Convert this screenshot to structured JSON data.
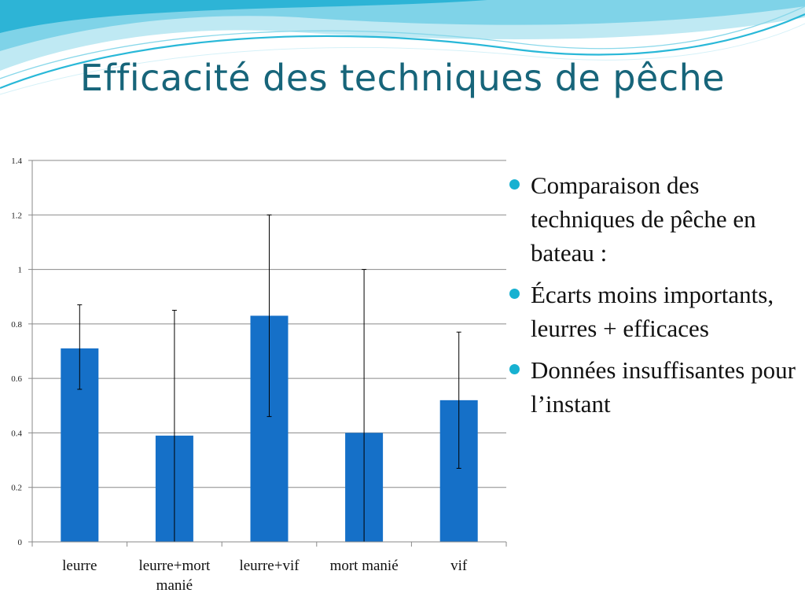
{
  "slide": {
    "title": "Efficacité des techniques de pêche",
    "bullets": [
      "Comparaison des techniques de pêche en bateau :",
      "Écarts moins importants, leurres + efficaces",
      "Données insuffisantes pour l’instant"
    ],
    "colors": {
      "title": "#17657a",
      "bullet": "#17b1d1",
      "bar": "#1570c8",
      "wave": "#29b8d8"
    }
  },
  "chart_data": {
    "type": "bar",
    "categories": [
      [
        "leurre"
      ],
      [
        "leurre+mort",
        "manié"
      ],
      [
        "leurre+vif"
      ],
      [
        "mort manié"
      ],
      [
        "vif"
      ]
    ],
    "values": [
      0.71,
      0.39,
      0.83,
      0.4,
      0.52
    ],
    "error_low": [
      0.56,
      0.0,
      0.46,
      0.0,
      0.27
    ],
    "error_high": [
      0.87,
      0.85,
      1.2,
      1.0,
      0.77
    ],
    "ylim": [
      0,
      1.4
    ],
    "yticks": [
      "0",
      "0.2",
      "0.4",
      "0.6",
      "0.8",
      "1",
      "1.2",
      "1.4"
    ],
    "grid": true,
    "title": "",
    "xlabel": "",
    "ylabel": ""
  }
}
